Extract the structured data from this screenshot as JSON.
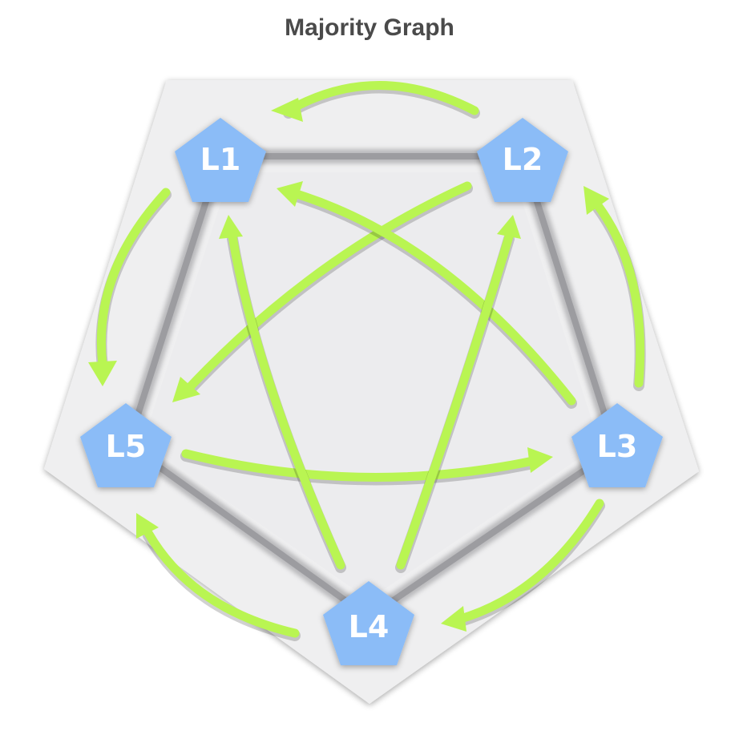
{
  "title": "Majority Graph",
  "colors": {
    "background_pentagon": "#efeff0",
    "inner_edges": "#8e8e92",
    "arrows": "#b9f552",
    "nodes": "#8bbcf7",
    "node_text": "#ffffff",
    "title": "#4a4a4a"
  },
  "nodes": [
    {
      "id": "L1",
      "label": "L1"
    },
    {
      "id": "L2",
      "label": "L2"
    },
    {
      "id": "L3",
      "label": "L3"
    },
    {
      "id": "L4",
      "label": "L4"
    },
    {
      "id": "L5",
      "label": "L5"
    }
  ],
  "edges": [
    {
      "from": "L2",
      "to": "L1"
    },
    {
      "from": "L1",
      "to": "L5"
    },
    {
      "from": "L5",
      "to": "L3"
    },
    {
      "from": "L3",
      "to": "L2"
    },
    {
      "from": "L2",
      "to": "L5"
    },
    {
      "from": "L3",
      "to": "L1"
    },
    {
      "from": "L4",
      "to": "L1"
    },
    {
      "from": "L4",
      "to": "L2"
    },
    {
      "from": "L3",
      "to": "L4"
    },
    {
      "from": "L4",
      "to": "L5"
    }
  ]
}
